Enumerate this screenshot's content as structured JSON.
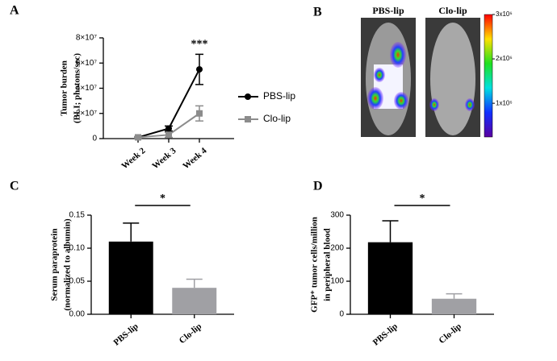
{
  "chart_data": [
    {
      "type": "line",
      "panel": "A",
      "ylabel": [
        "Tumor burden",
        "(BLI; photons/sec)"
      ],
      "categories": [
        "Week 2",
        "Week 3",
        "Week 4"
      ],
      "series": [
        {
          "name": "PBS-lip",
          "color": "#000000",
          "marker": "circle",
          "values": [
            1000000,
            8000000,
            55000000
          ],
          "errors": [
            500000,
            2000000,
            12000000
          ]
        },
        {
          "name": "Clo-lip",
          "color": "#8c8c8c",
          "marker": "square",
          "values": [
            1000000,
            3000000,
            20000000
          ],
          "errors": [
            500000,
            2000000,
            6000000
          ]
        }
      ],
      "annotation": "***",
      "ylim": [
        0,
        80000000
      ],
      "yticks": [
        0,
        {
          "value": 20000000,
          "label": "2×10⁷"
        },
        {
          "value": 40000000,
          "label": "4×10⁷"
        },
        {
          "value": 60000000,
          "label": "6×10⁷"
        },
        {
          "value": 80000000,
          "label": "8×10⁷"
        }
      ],
      "legend": "right"
    },
    {
      "type": "image",
      "panel": "B",
      "labels": [
        "PBS-lip",
        "Clo-lip"
      ],
      "clim": [
        240000,
        3000000
      ],
      "cticks": [
        {
          "value": 1000000,
          "label": "1x10⁶"
        },
        {
          "value": 2000000,
          "label": "2x10⁶"
        },
        {
          "value": 3000000,
          "label": "3x10⁶"
        }
      ]
    },
    {
      "type": "bar",
      "panel": "C",
      "ylabel": [
        "Serum paraprotein",
        "(normalized to albumin)"
      ],
      "categories": [
        "PBS-lip",
        "Clo-lip"
      ],
      "values": [
        0.11,
        0.04
      ],
      "errors": [
        0.028,
        0.013
      ],
      "colors": [
        "#000000",
        "#a0a0a4"
      ],
      "annotation": "*",
      "ylim": [
        0,
        0.15
      ],
      "yticks": [
        {
          "value": 0,
          "label": "0.00"
        },
        {
          "value": 0.05,
          "label": "0.05"
        },
        {
          "value": 0.1,
          "label": "0.10"
        },
        {
          "value": 0.15,
          "label": "0.15"
        }
      ]
    },
    {
      "type": "bar",
      "panel": "D",
      "ylabel": [
        "GFP⁺ tumor cells/million",
        "in peripheral blood"
      ],
      "categories": [
        "PBS-lip",
        "Clo-lip"
      ],
      "values": [
        218,
        47
      ],
      "errors": [
        65,
        15
      ],
      "colors": [
        "#000000",
        "#a0a0a4"
      ],
      "annotation": "*",
      "ylim": [
        0,
        300
      ],
      "yticks": [
        0,
        100,
        200,
        300
      ]
    }
  ]
}
